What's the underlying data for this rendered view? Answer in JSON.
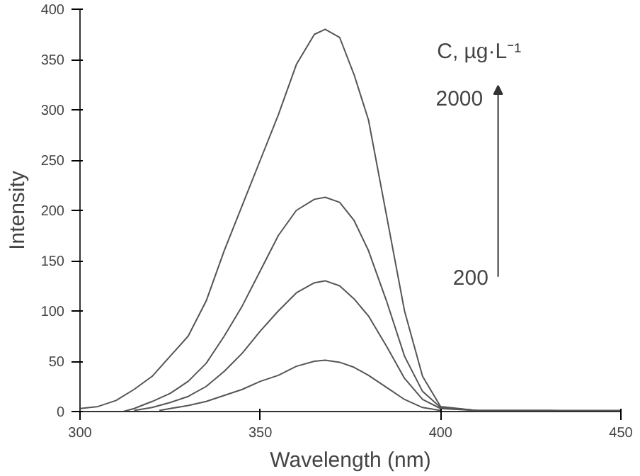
{
  "chart_data": {
    "type": "line",
    "xlabel": "Wavelength (nm)",
    "ylabel": "Intensity",
    "x": [
      300,
      305,
      310,
      315,
      320,
      325,
      330,
      335,
      340,
      345,
      350,
      355,
      360,
      365,
      368,
      372,
      376,
      380,
      385,
      390,
      395,
      400,
      410,
      420,
      430,
      440,
      450
    ],
    "series": [
      {
        "color": "#555555",
        "values": [
          3,
          5,
          11,
          22,
          35,
          55,
          75,
          110,
          160,
          205,
          250,
          295,
          345,
          375,
          380,
          372,
          335,
          290,
          195,
          100,
          35,
          5,
          1,
          1,
          1,
          1,
          1
        ]
      },
      {
        "color": "#555555",
        "x": [
          312,
          315,
          320,
          325,
          330,
          335,
          340,
          345,
          350,
          355,
          360,
          365,
          368,
          372,
          376,
          380,
          385,
          390,
          395,
          400,
          410,
          420,
          430,
          440,
          450
        ],
        "values": [
          0,
          3,
          10,
          18,
          30,
          48,
          75,
          105,
          140,
          175,
          200,
          211,
          213,
          208,
          190,
          160,
          110,
          55,
          20,
          4,
          1,
          1,
          1,
          0,
          0
        ]
      },
      {
        "color": "#555555",
        "x": [
          315,
          320,
          325,
          330,
          335,
          340,
          345,
          350,
          355,
          360,
          365,
          368,
          372,
          376,
          380,
          385,
          390,
          395,
          400,
          410
        ],
        "values": [
          1,
          4,
          9,
          15,
          25,
          40,
          58,
          80,
          100,
          118,
          128,
          130,
          125,
          112,
          95,
          65,
          33,
          12,
          3,
          1
        ]
      },
      {
        "color": "#555555",
        "x": [
          322,
          325,
          330,
          335,
          340,
          345,
          350,
          355,
          360,
          365,
          368,
          372,
          376,
          380,
          385,
          390,
          395,
          400
        ],
        "values": [
          1,
          3,
          6,
          10,
          16,
          22,
          30,
          36,
          45,
          50,
          51,
          49,
          44,
          36,
          24,
          12,
          4,
          1
        ]
      }
    ],
    "xlim": [
      300,
      450
    ],
    "xticks": [
      300,
      350,
      400,
      450
    ],
    "ylim": [
      0,
      400
    ],
    "yticks": [
      0,
      50,
      100,
      150,
      200,
      250,
      300,
      350,
      400
    ],
    "grid": false,
    "marker": "none",
    "line_style": "solid",
    "annotations": [
      "C, µg·L⁻¹",
      "2000",
      "200"
    ]
  }
}
